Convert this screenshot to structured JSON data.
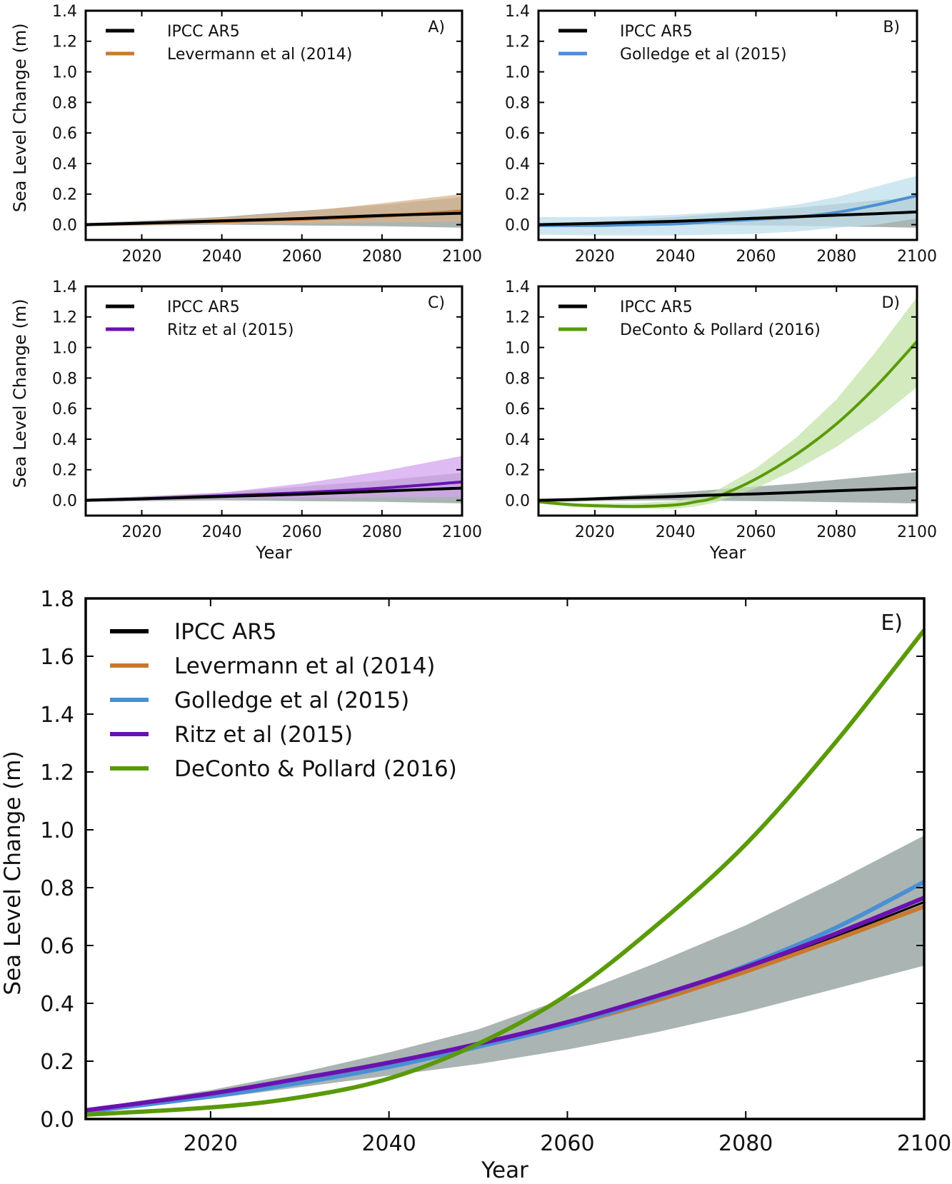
{
  "chart_data": [
    {
      "id": "A",
      "type": "line",
      "panel_label": "A)",
      "xlabel": "",
      "ylabel": "Sea Level Change (m)",
      "xlim": [
        2006,
        2100
      ],
      "ylim": [
        -0.1,
        1.4
      ],
      "xticks": [
        2020,
        2040,
        2060,
        2080,
        2100
      ],
      "yticks": [
        0.0,
        0.2,
        0.4,
        0.6,
        0.8,
        1.0,
        1.2,
        1.4
      ],
      "ytick_labels": [
        "0.0",
        "0.2",
        "0.4",
        "0.6",
        "0.8",
        "1.0",
        "1.2",
        "1.4"
      ],
      "legend_position": "top-left",
      "x": [
        2006,
        2020,
        2040,
        2060,
        2080,
        2100
      ],
      "series": [
        {
          "name": "IPCC AR5",
          "color": "#000000",
          "band_color": "#aab5b3",
          "values": [
            0.0,
            0.01,
            0.025,
            0.04,
            0.06,
            0.075
          ],
          "lower": [
            -0.01,
            -0.005,
            0.0,
            -0.005,
            -0.01,
            -0.02
          ],
          "upper": [
            0.01,
            0.025,
            0.05,
            0.09,
            0.13,
            0.18
          ]
        },
        {
          "name": "Levermann et al (2014)",
          "color": "#c8792f",
          "band_color": "#d9b48e",
          "values": [
            0.0,
            0.008,
            0.02,
            0.035,
            0.055,
            0.09
          ],
          "lower": [
            -0.01,
            -0.002,
            0.005,
            0.01,
            0.015,
            0.02
          ],
          "upper": [
            0.01,
            0.02,
            0.045,
            0.085,
            0.14,
            0.2
          ]
        }
      ]
    },
    {
      "id": "B",
      "type": "line",
      "panel_label": "B)",
      "xlabel": "",
      "ylabel": "",
      "xlim": [
        2006,
        2100
      ],
      "ylim": [
        -0.1,
        1.4
      ],
      "xticks": [
        2020,
        2040,
        2060,
        2080,
        2100
      ],
      "yticks": [
        0.0,
        0.2,
        0.4,
        0.6,
        0.8,
        1.0,
        1.2,
        1.4
      ],
      "ytick_labels": [
        "0.0",
        "0.2",
        "0.4",
        "0.6",
        "0.8",
        "1.0",
        "1.2",
        "1.4"
      ],
      "legend_position": "top-left",
      "x": [
        2006,
        2020,
        2030,
        2040,
        2050,
        2060,
        2070,
        2080,
        2090,
        2100
      ],
      "series": [
        {
          "name": "IPCC AR5",
          "color": "#000000",
          "band_color": "#aab5b3",
          "values": [
            0.0,
            0.008,
            0.015,
            0.022,
            0.032,
            0.042,
            0.052,
            0.062,
            0.072,
            0.083
          ],
          "lower": [
            -0.01,
            -0.005,
            -0.002,
            0.0,
            -0.002,
            -0.005,
            -0.008,
            -0.012,
            -0.015,
            -0.02
          ],
          "upper": [
            0.01,
            0.02,
            0.035,
            0.05,
            0.07,
            0.09,
            0.11,
            0.135,
            0.16,
            0.18
          ]
        },
        {
          "name": "Golledge et al (2015)",
          "color": "#4a8fd4",
          "band_color": "#bfdfeb",
          "values": [
            -0.005,
            -0.005,
            0.0,
            0.005,
            0.02,
            0.035,
            0.05,
            0.08,
            0.13,
            0.19
          ],
          "lower": [
            -0.065,
            -0.07,
            -0.07,
            -0.07,
            -0.065,
            -0.06,
            -0.045,
            -0.02,
            0.0,
            0.04
          ],
          "upper": [
            0.05,
            0.05,
            0.055,
            0.065,
            0.08,
            0.1,
            0.13,
            0.18,
            0.25,
            0.32
          ]
        }
      ]
    },
    {
      "id": "C",
      "type": "line",
      "panel_label": "C)",
      "xlabel": "Year",
      "ylabel": "Sea Level Change (m)",
      "xlim": [
        2006,
        2100
      ],
      "ylim": [
        -0.1,
        1.4
      ],
      "xticks": [
        2020,
        2040,
        2060,
        2080,
        2100
      ],
      "yticks": [
        0.0,
        0.2,
        0.4,
        0.6,
        0.8,
        1.0,
        1.2,
        1.4
      ],
      "ytick_labels": [
        "0.0",
        "0.2",
        "0.4",
        "0.6",
        "0.8",
        "1.0",
        "1.2",
        "1.4"
      ],
      "legend_position": "top-left",
      "x": [
        2006,
        2020,
        2040,
        2060,
        2080,
        2100
      ],
      "series": [
        {
          "name": "IPCC AR5",
          "color": "#000000",
          "band_color": "#aab5b3",
          "values": [
            0.0,
            0.01,
            0.025,
            0.04,
            0.06,
            0.08
          ],
          "lower": [
            -0.01,
            -0.005,
            0.0,
            -0.005,
            -0.01,
            -0.02
          ],
          "upper": [
            0.01,
            0.025,
            0.05,
            0.09,
            0.13,
            0.18
          ]
        },
        {
          "name": "Ritz et al (2015)",
          "color": "#6a11b0",
          "band_color": "#d3a4ee",
          "values": [
            0.0,
            0.01,
            0.03,
            0.05,
            0.08,
            0.12
          ],
          "lower": [
            -0.01,
            0.0,
            0.01,
            0.015,
            0.02,
            0.02
          ],
          "upper": [
            0.01,
            0.02,
            0.05,
            0.11,
            0.19,
            0.29
          ]
        }
      ]
    },
    {
      "id": "D",
      "type": "line",
      "panel_label": "D)",
      "xlabel": "Year",
      "ylabel": "",
      "xlim": [
        2006,
        2100
      ],
      "ylim": [
        -0.1,
        1.4
      ],
      "xticks": [
        2020,
        2040,
        2060,
        2080,
        2100
      ],
      "yticks": [
        0.0,
        0.2,
        0.4,
        0.6,
        0.8,
        1.0,
        1.2,
        1.4
      ],
      "ytick_labels": [
        "0.0",
        "0.2",
        "0.4",
        "0.6",
        "0.8",
        "1.0",
        "1.2",
        "1.4"
      ],
      "legend_position": "top-left",
      "x": [
        2006,
        2015,
        2020,
        2030,
        2040,
        2045,
        2050,
        2060,
        2070,
        2080,
        2090,
        2100
      ],
      "series": [
        {
          "name": "IPCC AR5",
          "color": "#000000",
          "band_color": "#aab5b3",
          "values": [
            0.0,
            0.005,
            0.01,
            0.018,
            0.025,
            0.03,
            0.035,
            0.042,
            0.052,
            0.062,
            0.072,
            0.082
          ],
          "lower": [
            -0.01,
            -0.008,
            -0.005,
            -0.002,
            0.0,
            -0.001,
            -0.003,
            -0.005,
            -0.008,
            -0.012,
            -0.016,
            -0.02
          ],
          "upper": [
            0.01,
            0.015,
            0.02,
            0.035,
            0.05,
            0.06,
            0.07,
            0.09,
            0.11,
            0.135,
            0.16,
            0.185
          ]
        },
        {
          "name": "DeConto & Pollard (2016)",
          "color": "#5a9a08",
          "band_color": "#c3e3a8",
          "values": [
            -0.01,
            -0.03,
            -0.035,
            -0.04,
            -0.03,
            -0.01,
            0.02,
            0.14,
            0.3,
            0.5,
            0.75,
            1.04
          ],
          "lower": [
            -0.02,
            -0.045,
            -0.05,
            -0.055,
            -0.055,
            -0.04,
            -0.015,
            0.08,
            0.2,
            0.35,
            0.53,
            0.74
          ],
          "upper": [
            0.0,
            -0.02,
            -0.02,
            -0.02,
            -0.005,
            0.02,
            0.06,
            0.21,
            0.41,
            0.66,
            0.98,
            1.33
          ]
        }
      ]
    },
    {
      "id": "E",
      "type": "line",
      "panel_label": "E)",
      "xlabel": "Year",
      "ylabel": "Sea Level Change (m)",
      "xlim": [
        2006,
        2100
      ],
      "ylim": [
        0.0,
        1.8
      ],
      "xticks": [
        2020,
        2040,
        2060,
        2080,
        2100
      ],
      "yticks": [
        0.0,
        0.2,
        0.4,
        0.6,
        0.8,
        1.0,
        1.2,
        1.4,
        1.6,
        1.8
      ],
      "ytick_labels": [
        "0.0",
        "0.2",
        "0.4",
        "0.6",
        "0.8",
        "1.0",
        "1.2",
        "1.4",
        "1.6",
        "1.8"
      ],
      "legend_position": "top-left",
      "x": [
        2006,
        2020,
        2030,
        2040,
        2050,
        2060,
        2070,
        2080,
        2090,
        2100
      ],
      "band": {
        "name": "IPCC AR5 range",
        "color": "#aab5b3",
        "lower": [
          0.025,
          0.07,
          0.11,
          0.15,
          0.19,
          0.24,
          0.3,
          0.37,
          0.45,
          0.53
        ],
        "upper": [
          0.035,
          0.1,
          0.16,
          0.23,
          0.31,
          0.42,
          0.54,
          0.67,
          0.82,
          0.98
        ]
      },
      "series": [
        {
          "name": "IPCC AR5",
          "color": "#000000",
          "values": [
            0.03,
            0.085,
            0.135,
            0.19,
            0.26,
            0.33,
            0.42,
            0.52,
            0.63,
            0.75
          ]
        },
        {
          "name": "Levermann et al (2014)",
          "color": "#c8792f",
          "values": [
            0.03,
            0.085,
            0.135,
            0.19,
            0.255,
            0.325,
            0.41,
            0.51,
            0.62,
            0.735
          ]
        },
        {
          "name": "Golledge et al (2015)",
          "color": "#4a8fd4",
          "values": [
            0.025,
            0.078,
            0.125,
            0.18,
            0.25,
            0.325,
            0.42,
            0.53,
            0.66,
            0.82
          ]
        },
        {
          "name": "Ritz et al (2015)",
          "color": "#6a11b0",
          "values": [
            0.03,
            0.088,
            0.14,
            0.195,
            0.26,
            0.335,
            0.425,
            0.525,
            0.64,
            0.765
          ]
        },
        {
          "name": "DeConto & Pollard (2016)",
          "color": "#5a9a08",
          "values": [
            0.015,
            0.04,
            0.075,
            0.14,
            0.26,
            0.43,
            0.67,
            0.95,
            1.3,
            1.69
          ]
        }
      ]
    }
  ]
}
